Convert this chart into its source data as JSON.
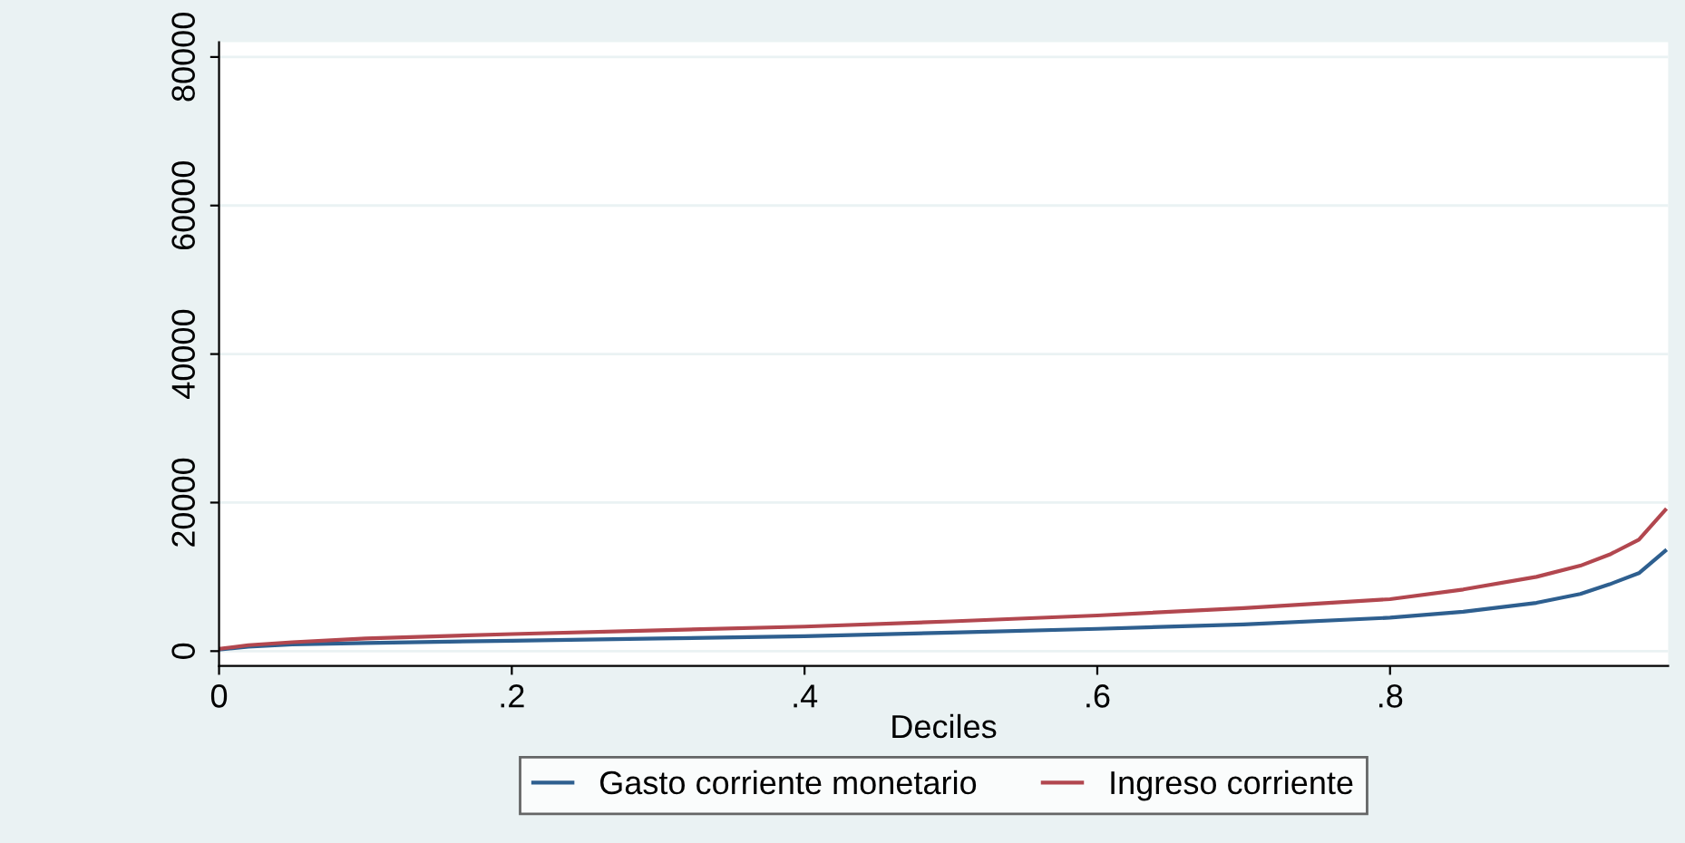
{
  "chart_data": {
    "type": "line",
    "xlabel": "Deciles",
    "x": [
      0,
      0.02,
      0.05,
      0.1,
      0.2,
      0.3,
      0.4,
      0.5,
      0.6,
      0.7,
      0.8,
      0.85,
      0.9,
      0.93,
      0.95,
      0.97,
      0.988
    ],
    "series": [
      {
        "name": "Gasto corriente monetario",
        "color": "#2e5f8f",
        "values": [
          200,
          600,
          900,
          1100,
          1400,
          1700,
          2000,
          2500,
          3000,
          3600,
          4500,
          5300,
          6500,
          7700,
          9000,
          10500,
          13500
        ]
      },
      {
        "name": "Ingreso corriente",
        "color": "#b2474f",
        "values": [
          300,
          800,
          1200,
          1700,
          2300,
          2800,
          3300,
          4000,
          4800,
          5800,
          7000,
          8300,
          10000,
          11500,
          13000,
          15000,
          19000
        ]
      }
    ],
    "xlim": [
      0,
      0.99
    ],
    "xticks": [
      0,
      {
        "value": 0.2,
        "label": ".2"
      },
      {
        "value": 0.4,
        "label": ".4"
      },
      {
        "value": 0.6,
        "label": ".6"
      },
      {
        "value": 0.8,
        "label": ".8"
      }
    ],
    "ylim": [
      -2000,
      82000
    ],
    "yticks": [
      0,
      20000,
      40000,
      60000,
      80000
    ],
    "grid": "y",
    "legend": "bottom"
  }
}
